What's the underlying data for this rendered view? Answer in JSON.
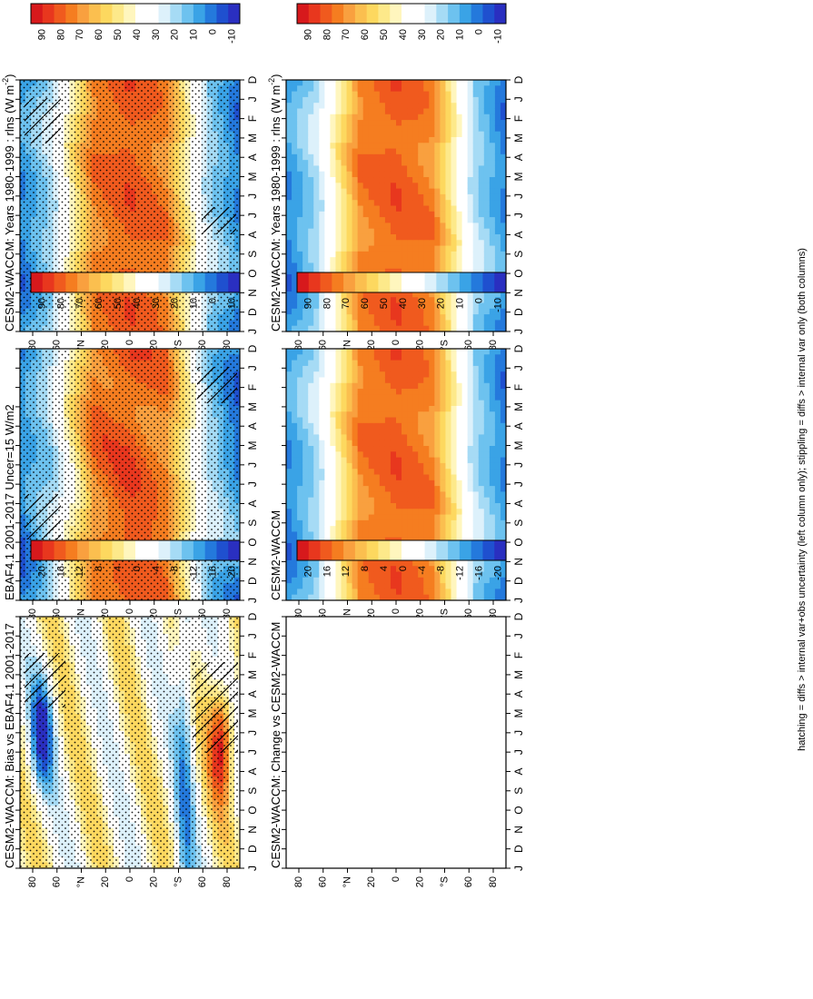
{
  "footnote": "hatching = diffs > internal var+obs uncertainty (left column only); stippling = diffs > internal var only (both columns)",
  "colors": {
    "fullfield": [
      "#d7191c",
      "#e8371e",
      "#f05a1e",
      "#f57d20",
      "#f9a03f",
      "#fbbf4f",
      "#fdd85f",
      "#fde98a",
      "#fff6be",
      "#ffffff",
      "#ffffff",
      "#ddf1fb",
      "#a6dbf5",
      "#6dc2ef",
      "#3aa3e6",
      "#2479dc",
      "#1f50cf",
      "#2a2fc0"
    ],
    "diff": [
      "#d7191c",
      "#e8371e",
      "#f05a1e",
      "#f57d20",
      "#f9a03f",
      "#fbbf4f",
      "#fdd85f",
      "#fde98a",
      "#fff6be",
      "#ffffff",
      "#ffffff",
      "#ddf1fb",
      "#a6dbf5",
      "#6dc2ef",
      "#3aa3e6",
      "#2479dc",
      "#1f50cf",
      "#2a2fc0"
    ]
  },
  "chart_data": [
    {
      "type": "heatmap",
      "id": "left-top",
      "title": "CESM2-WACCM: Years 1980-1999 : rlns (W m",
      "title_sup": "-2",
      "title_end": ")",
      "x_ticks": [
        "D",
        "J",
        "F",
        "M",
        "A",
        "M",
        "J",
        "J",
        "A",
        "S",
        "O",
        "N",
        "D",
        "J"
      ],
      "y_ticks": [
        "80",
        "60",
        "°N",
        "20",
        "0",
        "20",
        "°S",
        "60",
        "80"
      ],
      "colorbar_labels": [
        "90",
        "80",
        "70",
        "60",
        "50",
        "40",
        "30",
        "20",
        "10",
        "0",
        "-10"
      ],
      "colorbar": "fullfield",
      "field": "full",
      "stipple": "dense",
      "hatch": "left-top"
    },
    {
      "type": "heatmap",
      "id": "right-top",
      "title": "CESM2-WACCM: Years 1980-1999 : rlns (W m",
      "title_sup": "-2",
      "title_end": ")",
      "x_ticks": [
        "D",
        "J",
        "F",
        "M",
        "A",
        "M",
        "J",
        "J",
        "A",
        "S",
        "O",
        "N",
        "D",
        "J"
      ],
      "y_ticks": [
        "80",
        "60",
        "°N",
        "20",
        "0",
        "20",
        "°S",
        "60",
        "80"
      ],
      "colorbar_labels": [
        "90",
        "80",
        "70",
        "60",
        "50",
        "40",
        "30",
        "20",
        "10",
        "0",
        "-10"
      ],
      "colorbar": "fullfield",
      "field": "full",
      "stipple": "none",
      "hatch": "none"
    },
    {
      "type": "heatmap",
      "id": "left-mid",
      "title": "EBAF4.1 2001-2017 Uncer=15 W/m2",
      "title_sup": "",
      "title_end": "",
      "x_ticks": [
        "D",
        "J",
        "F",
        "M",
        "A",
        "M",
        "J",
        "J",
        "A",
        "S",
        "O",
        "N",
        "D",
        "J"
      ],
      "y_ticks": [
        "80",
        "60",
        "°N",
        "20",
        "0",
        "20",
        "°S",
        "60",
        "80"
      ],
      "colorbar_labels": [
        "90",
        "80",
        "70",
        "60",
        "50",
        "40",
        "30",
        "20",
        "10",
        "0",
        "-10"
      ],
      "colorbar": "fullfield",
      "field": "obs",
      "stipple": "dense",
      "hatch": "left-mid"
    },
    {
      "type": "heatmap",
      "id": "right-mid",
      "title": "CESM2-WACCM",
      "title_sup": "",
      "title_end": "",
      "x_ticks": [
        "D",
        "J",
        "F",
        "M",
        "A",
        "M",
        "J",
        "J",
        "A",
        "S",
        "O",
        "N",
        "D",
        "J"
      ],
      "y_ticks": [
        "80",
        "60",
        "°N",
        "20",
        "0",
        "20",
        "°S",
        "60",
        "80"
      ],
      "colorbar_labels": [
        "90",
        "80",
        "70",
        "60",
        "50",
        "40",
        "30",
        "20",
        "10",
        "0",
        "-10"
      ],
      "colorbar": "fullfield",
      "field": "full",
      "stipple": "none",
      "hatch": "none"
    },
    {
      "type": "heatmap",
      "id": "left-bot",
      "title": "CESM2-WACCM: Bias vs EBAF4.1 2001-2017",
      "title_sup": "",
      "title_end": "",
      "x_ticks": [
        "D",
        "J",
        "F",
        "M",
        "A",
        "M",
        "J",
        "J",
        "A",
        "S",
        "O",
        "N",
        "D",
        "J"
      ],
      "y_ticks": [
        "80",
        "60",
        "°N",
        "20",
        "0",
        "20",
        "°S",
        "60",
        "80"
      ],
      "colorbar_labels": [
        "20",
        "16",
        "12",
        "8",
        "4",
        "0",
        "-4",
        "-8",
        "-12",
        "-16",
        "-20"
      ],
      "colorbar": "diff",
      "field": "bias",
      "stipple": "dense",
      "hatch": "left-bot"
    },
    {
      "type": "heatmap",
      "id": "right-bot",
      "title": "CESM2-WACCM: Change vs CESM2-WACCM",
      "title_sup": "",
      "title_end": "",
      "x_ticks": [
        "D",
        "J",
        "F",
        "M",
        "A",
        "M",
        "J",
        "J",
        "A",
        "S",
        "O",
        "N",
        "D",
        "J"
      ],
      "y_ticks": [
        "80",
        "60",
        "°N",
        "20",
        "0",
        "20",
        "°S",
        "60",
        "80"
      ],
      "colorbar_labels": [
        "20",
        "16",
        "12",
        "8",
        "4",
        "0",
        "-4",
        "-8",
        "-12",
        "-16",
        "-20"
      ],
      "colorbar": "diff",
      "field": "blank",
      "stipple": "none",
      "hatch": "none"
    }
  ]
}
